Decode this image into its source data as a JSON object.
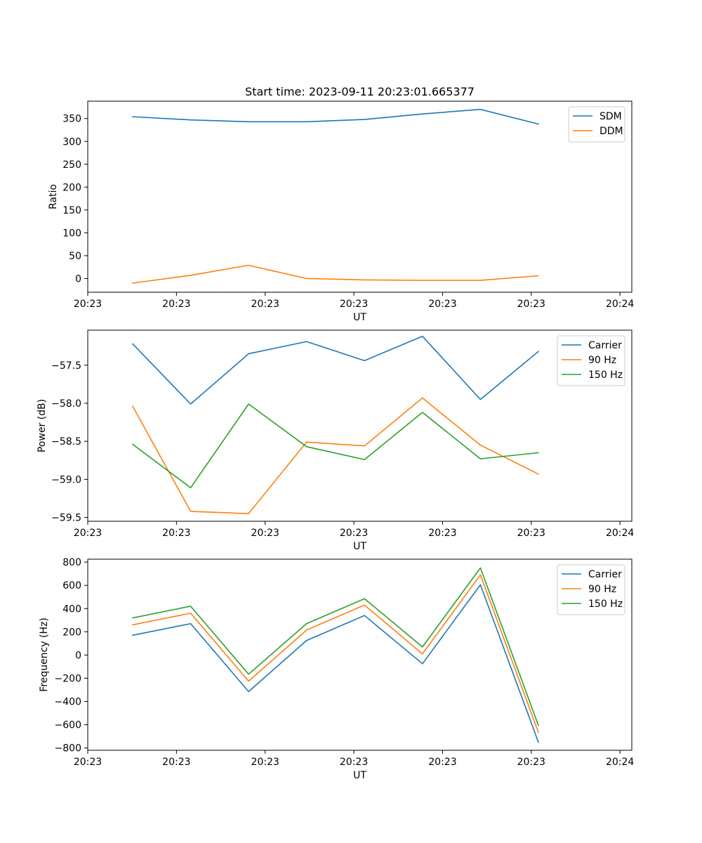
{
  "figure_title": "Start time: 2023-09-11 20:23:01.665377",
  "colors": {
    "blue": "#1f77b4",
    "orange": "#ff7f0e",
    "green": "#2ca02c"
  },
  "chart_data": [
    {
      "type": "line",
      "title": "Start time: 2023-09-11 20:23:01.665377",
      "xlabel": "UT",
      "ylabel": "Ratio",
      "xlim": [
        0,
        9.2
      ],
      "ylim": [
        -30,
        388
      ],
      "x": [
        0.76,
        1.74,
        2.72,
        3.7,
        4.68,
        5.66,
        6.64,
        7.62
      ],
      "xticks": [
        {
          "v": 0,
          "label": "20:23"
        },
        {
          "v": 1.5,
          "label": "20:23"
        },
        {
          "v": 3.0,
          "label": "20:23"
        },
        {
          "v": 4.5,
          "label": "20:23"
        },
        {
          "v": 6.0,
          "label": "20:23"
        },
        {
          "v": 7.5,
          "label": "20:23"
        },
        {
          "v": 9.0,
          "label": "20:24"
        }
      ],
      "yticks": [
        {
          "v": 0,
          "label": "0"
        },
        {
          "v": 50,
          "label": "50"
        },
        {
          "v": 100,
          "label": "100"
        },
        {
          "v": 150,
          "label": "150"
        },
        {
          "v": 200,
          "label": "200"
        },
        {
          "v": 250,
          "label": "250"
        },
        {
          "v": 300,
          "label": "300"
        },
        {
          "v": 350,
          "label": "350"
        }
      ],
      "legend_position": "top-right",
      "series": [
        {
          "name": "SDM",
          "color": "#1f77b4",
          "values": [
            354,
            347,
            343,
            343,
            348,
            360,
            370,
            338
          ]
        },
        {
          "name": "DDM",
          "color": "#ff7f0e",
          "values": [
            -10,
            7,
            29,
            0,
            -3,
            -4,
            -4,
            6
          ]
        }
      ]
    },
    {
      "type": "line",
      "xlabel": "UT",
      "ylabel": "Power (dB)",
      "xlim": [
        0,
        9.2
      ],
      "ylim": [
        -59.55,
        -57.04
      ],
      "x": [
        0.76,
        1.74,
        2.72,
        3.7,
        4.68,
        5.66,
        6.64,
        7.62
      ],
      "xticks": [
        {
          "v": 0,
          "label": "20:23"
        },
        {
          "v": 1.5,
          "label": "20:23"
        },
        {
          "v": 3.0,
          "label": "20:23"
        },
        {
          "v": 4.5,
          "label": "20:23"
        },
        {
          "v": 6.0,
          "label": "20:23"
        },
        {
          "v": 7.5,
          "label": "20:23"
        },
        {
          "v": 9.0,
          "label": "20:24"
        }
      ],
      "yticks": [
        {
          "v": -59.5,
          "label": "−59.5"
        },
        {
          "v": -59.0,
          "label": "−59.0"
        },
        {
          "v": -58.5,
          "label": "−58.5"
        },
        {
          "v": -58.0,
          "label": "−58.0"
        },
        {
          "v": -57.5,
          "label": "−57.5"
        }
      ],
      "legend_position": "top-right",
      "series": [
        {
          "name": "Carrier",
          "color": "#1f77b4",
          "values": [
            -57.22,
            -58.01,
            -57.35,
            -57.19,
            -57.44,
            -57.12,
            -57.95,
            -57.32
          ]
        },
        {
          "name": "90 Hz",
          "color": "#ff7f0e",
          "values": [
            -58.04,
            -59.42,
            -59.45,
            -58.51,
            -58.56,
            -57.93,
            -58.55,
            -58.93
          ]
        },
        {
          "name": "150 Hz",
          "color": "#2ca02c",
          "values": [
            -58.54,
            -59.11,
            -58.01,
            -58.57,
            -58.74,
            -58.12,
            -58.73,
            -58.65
          ]
        }
      ]
    },
    {
      "type": "line",
      "xlabel": "UT",
      "ylabel": "Frequency (Hz)",
      "xlim": [
        0,
        9.2
      ],
      "ylim": [
        -820,
        825
      ],
      "x": [
        0.76,
        1.74,
        2.72,
        3.7,
        4.68,
        5.66,
        6.64,
        7.62
      ],
      "xticks": [
        {
          "v": 0,
          "label": "20:23"
        },
        {
          "v": 1.5,
          "label": "20:23"
        },
        {
          "v": 3.0,
          "label": "20:23"
        },
        {
          "v": 4.5,
          "label": "20:23"
        },
        {
          "v": 6.0,
          "label": "20:23"
        },
        {
          "v": 7.5,
          "label": "20:23"
        },
        {
          "v": 9.0,
          "label": "20:24"
        }
      ],
      "yticks": [
        {
          "v": -800,
          "label": "−800"
        },
        {
          "v": -600,
          "label": "−600"
        },
        {
          "v": -400,
          "label": "−400"
        },
        {
          "v": -200,
          "label": "−200"
        },
        {
          "v": 0,
          "label": "0"
        },
        {
          "v": 200,
          "label": "200"
        },
        {
          "v": 400,
          "label": "400"
        },
        {
          "v": 600,
          "label": "600"
        },
        {
          "v": 800,
          "label": "800"
        }
      ],
      "legend_position": "top-right",
      "series": [
        {
          "name": "Carrier",
          "color": "#1f77b4",
          "values": [
            170,
            270,
            -315,
            125,
            340,
            -75,
            605,
            -750
          ]
        },
        {
          "name": "90 Hz",
          "color": "#ff7f0e",
          "values": [
            260,
            360,
            -225,
            215,
            430,
            10,
            690,
            -665
          ]
        },
        {
          "name": "150 Hz",
          "color": "#2ca02c",
          "values": [
            320,
            420,
            -165,
            270,
            485,
            70,
            750,
            -605
          ]
        }
      ]
    }
  ]
}
